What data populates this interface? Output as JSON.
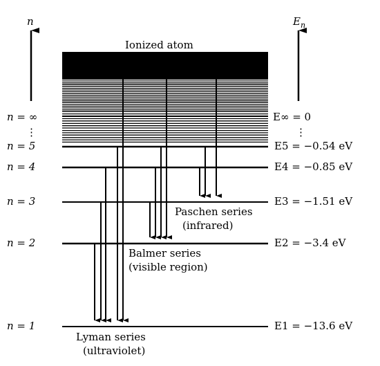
{
  "axes": {
    "left_label": "n",
    "right_label": "E",
    "right_label_sub": "n"
  },
  "ionized_label": "Ionized atom",
  "levels": [
    {
      "n": "∞",
      "left_label": "n = ∞",
      "right_label": "E∞ = 0",
      "energy_ev": 0
    },
    {
      "n": "5",
      "left_label": "n = 5",
      "right_label": "E5 = −0.54  eV",
      "energy_ev": -0.54
    },
    {
      "n": "4",
      "left_label": "n = 4",
      "right_label": "E4 = −0.85  eV",
      "energy_ev": -0.85
    },
    {
      "n": "3",
      "left_label": "n = 3",
      "right_label": "E3 = −1.51  eV",
      "energy_ev": -1.51
    },
    {
      "n": "2",
      "left_label": "n = 2",
      "right_label": "E2 = −3.4  eV",
      "energy_ev": -3.4
    },
    {
      "n": "1",
      "left_label": "n = 1",
      "right_label": "E1 = −13.6  eV",
      "energy_ev": -13.6
    }
  ],
  "ellipsis": "⋮",
  "series": [
    {
      "name": "Lyman series",
      "region": "(ultraviolet)",
      "final_level": 1,
      "transitions_from": [
        "2",
        "3",
        "4",
        "5",
        "∞"
      ]
    },
    {
      "name": "Balmer series",
      "region": "(visible region)",
      "final_level": 2,
      "transitions_from": [
        "3",
        "4",
        "5",
        "∞"
      ]
    },
    {
      "name": "Paschen series",
      "region": "(infrared)",
      "final_level": 3,
      "transitions_from": [
        "4",
        "5",
        "∞"
      ]
    }
  ]
}
